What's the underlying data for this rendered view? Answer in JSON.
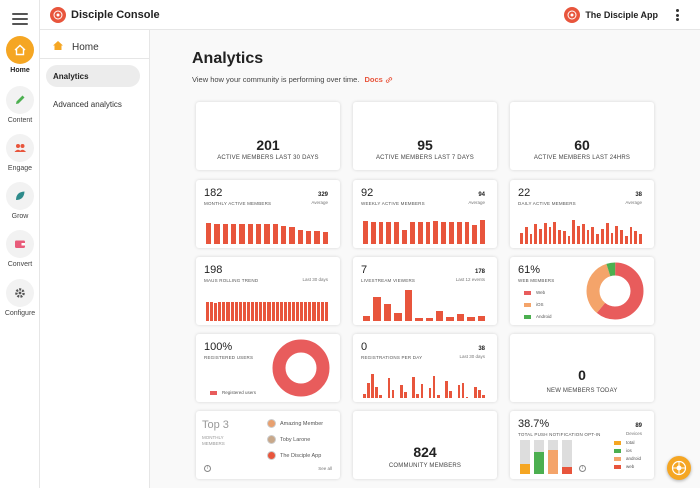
{
  "app": {
    "title": "Disciple Console",
    "app_switcher": "The Disciple App"
  },
  "rail": [
    {
      "label": "Home",
      "icon": "home-icon",
      "active": true
    },
    {
      "label": "Content",
      "icon": "pencil-icon",
      "active": false
    },
    {
      "label": "Engage",
      "icon": "people-icon",
      "active": false
    },
    {
      "label": "Grow",
      "icon": "leaf-icon",
      "active": false
    },
    {
      "label": "Convert",
      "icon": "wallet-icon",
      "active": false
    },
    {
      "label": "Configure",
      "icon": "gear-icon",
      "active": false
    }
  ],
  "nav": {
    "home": "Home",
    "items": [
      {
        "label": "Analytics",
        "selected": true
      },
      {
        "label": "Advanced analytics",
        "selected": false
      }
    ]
  },
  "page": {
    "title": "Analytics",
    "subtitle": "View how your community is performing over time.",
    "docs": "Docs"
  },
  "stats": [
    {
      "value": "201",
      "label": "ACTIVE MEMBERS LAST 30 DAYS"
    },
    {
      "value": "95",
      "label": "ACTIVE MEMBERS LAST 7 DAYS"
    },
    {
      "value": "60",
      "label": "ACTIVE MEMBERS LAST 24HRS"
    }
  ],
  "mam": {
    "value": "182",
    "label": "MONTHLY ACTIVE MEMBERS",
    "right_value": "329",
    "right_label": "Average",
    "bars": [
      0.75,
      0.72,
      0.7,
      0.72,
      0.72,
      0.7,
      0.72,
      0.7,
      0.72,
      0.65,
      0.62,
      0.5,
      0.48,
      0.45,
      0.42
    ]
  },
  "wam": {
    "value": "92",
    "label": "WEEKLY ACTIVE MEMBERS",
    "right_value": "94",
    "right_label": "Average",
    "bars": [
      0.82,
      0.8,
      0.78,
      0.8,
      0.8,
      0.5,
      0.8,
      0.78,
      0.78,
      0.82,
      0.78,
      0.8,
      0.8,
      0.8,
      0.68,
      0.85
    ]
  },
  "dam": {
    "value": "22",
    "label": "DAILY ACTIVE MEMBERS",
    "right_value": "38",
    "right_label": "Average",
    "bars": [
      0.4,
      0.6,
      0.35,
      0.7,
      0.55,
      0.75,
      0.6,
      0.8,
      0.5,
      0.45,
      0.3,
      0.85,
      0.65,
      0.7,
      0.5,
      0.6,
      0.35,
      0.55,
      0.75,
      0.4,
      0.65,
      0.5,
      0.3,
      0.6,
      0.45,
      0.35
    ]
  },
  "maus": {
    "value": "198",
    "label": "MAUS ROLLING TREND",
    "right_label": "Last 30 days",
    "bars": [
      0.72,
      0.72,
      0.7,
      0.72,
      0.72,
      0.74,
      0.72,
      0.72,
      0.74,
      0.72,
      0.74,
      0.72,
      0.72,
      0.74,
      0.72,
      0.74,
      0.72,
      0.74,
      0.72,
      0.72,
      0.74,
      0.72,
      0.72,
      0.74,
      0.72,
      0.72,
      0.74,
      0.72,
      0.74,
      0.72
    ]
  },
  "livestream": {
    "value": "7",
    "label": "LIVESTREAM VIEWERS",
    "right_value": "178",
    "right_label": "Last 12 events",
    "bars": [
      0.15,
      0.72,
      0.5,
      0.25,
      0.92,
      0.1,
      0.1,
      0.28,
      0.12,
      0.2,
      0.12,
      0.15
    ]
  },
  "web": {
    "value": "61%",
    "label": "WEB MEMBERS",
    "segments": [
      {
        "name": "Web",
        "pct": 61,
        "color": "#e85c5c"
      },
      {
        "name": "iOS",
        "pct": 34,
        "color": "#f4a46a"
      },
      {
        "name": "Android",
        "pct": 5,
        "color": "#4caf50"
      }
    ]
  },
  "registered": {
    "value": "100%",
    "label": "REGISTERED USERS",
    "legend": "Registered users",
    "color": "#e85c5c"
  },
  "regday": {
    "value": "0",
    "label": "REGISTRATIONS PER DAY",
    "right_value": "38",
    "right_label": "Last 30 days",
    "bars": [
      0.15,
      0.55,
      0.85,
      0.4,
      0.1,
      0,
      0.7,
      0.3,
      0,
      0.45,
      0.2,
      0,
      0.75,
      0.15,
      0.5,
      0,
      0.35,
      0.8,
      0.1,
      0,
      0.6,
      0.25,
      0,
      0.45,
      0.55,
      0.05,
      0,
      0.4,
      0.3,
      0.1
    ]
  },
  "newmem": {
    "value": "0",
    "label": "NEW MEMBERS TODAY"
  },
  "top3": {
    "title": "Top 3",
    "subtitle": "MONTHLY MEMBERS",
    "members": [
      "Amazing Member",
      "Toby Larone",
      "The Disciple App"
    ],
    "see_all": "See all"
  },
  "community": {
    "value": "824",
    "label": "COMMUNITY MEMBERS"
  },
  "push": {
    "value": "38.7%",
    "label": "TOTAL PUSH NOTIFICATION OPT-IN",
    "right_value": "89",
    "right_label": "Devices",
    "legend": [
      {
        "name": "total",
        "color": "#f5a623"
      },
      {
        "name": "ios",
        "color": "#4caf50"
      },
      {
        "name": "android",
        "color": "#f4a46a"
      },
      {
        "name": "web",
        "color": "#e8553c"
      }
    ],
    "stacks": [
      {
        "fill": 0.3,
        "color": "#f5a623"
      },
      {
        "fill": 0.65,
        "color": "#4caf50"
      },
      {
        "fill": 0.7,
        "color": "#f4a46a"
      },
      {
        "fill": 0.22,
        "color": "#e8553c"
      }
    ]
  }
}
